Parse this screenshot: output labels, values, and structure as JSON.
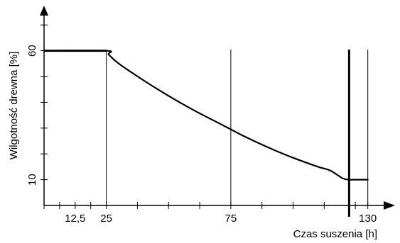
{
  "chart_data": {
    "type": "line",
    "xlabel": "Czas suszenia [h]",
    "ylabel": "Wilgotność drewna [%]",
    "xlim": [
      0,
      135
    ],
    "ylim": [
      0,
      73
    ],
    "x_ticks": [
      {
        "value": 12.5,
        "label": "12,5"
      },
      {
        "value": 25,
        "label": "25"
      },
      {
        "value": 75,
        "label": "75"
      },
      {
        "value": 130,
        "label": "130"
      }
    ],
    "x_minor_ticks": [
      0,
      6.25,
      18.75,
      37.5,
      50,
      62.5,
      87.5,
      100,
      112.5,
      125
    ],
    "y_ticks": [
      {
        "value": 10,
        "label": "10"
      },
      {
        "value": 60,
        "label": "60"
      }
    ],
    "y_minor_ticks": [
      20,
      30,
      40,
      50,
      70
    ],
    "vertical_lines": [
      {
        "x": 25,
        "style": "thin"
      },
      {
        "x": 75,
        "style": "thin"
      },
      {
        "x": 122.5,
        "style": "thick"
      },
      {
        "x": 130,
        "style": "thin"
      }
    ],
    "series": [
      {
        "x": [
          0,
          25,
          26,
          30,
          40,
          50,
          60,
          70,
          75,
          80,
          90,
          100,
          110,
          115,
          120,
          122.5,
          125,
          130
        ],
        "y": [
          60,
          60,
          58.5,
          55,
          48.5,
          42.5,
          37,
          32,
          29.5,
          27,
          22.5,
          18.5,
          15,
          13.5,
          10.5,
          10,
          10,
          10
        ]
      }
    ],
    "grid": false
  }
}
